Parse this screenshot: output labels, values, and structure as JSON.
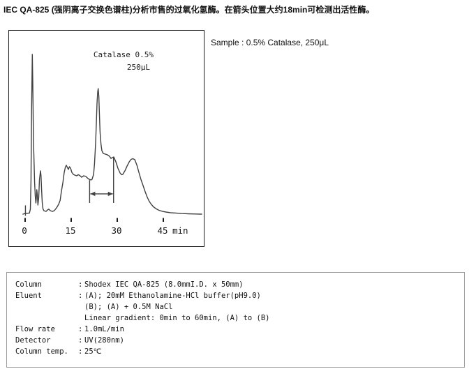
{
  "title": "IEC QA-825 (强阴离子交换色谱柱)分析市售的过氧化氢酶。在箭头位置大约18min可检测出活性酶。",
  "sample_text": "Sample : 0.5% Catalase, 250μL",
  "chart_data": {
    "type": "line",
    "title": "Catalase 0.5% 250μL chromatogram",
    "annotation_line1": "Catalase 0.5%",
    "annotation_line2": "250μL",
    "x_ticks": [
      0,
      15,
      30,
      45
    ],
    "x_unit": "min",
    "x_range": [
      -1,
      58
    ],
    "y_range": [
      0,
      105
    ],
    "grid": false,
    "legend": "none",
    "trace_units": "minutes vs relative UV(280nm) response (0-100 arb.)",
    "trace": [
      [
        -0.7,
        0
      ],
      [
        0,
        0.4
      ],
      [
        1.4,
        0.7
      ],
      [
        1.7,
        3.1
      ],
      [
        1.9,
        20.5
      ],
      [
        2.1,
        64
      ],
      [
        2.34,
        100
      ],
      [
        2.5,
        82
      ],
      [
        2.7,
        47
      ],
      [
        3.1,
        19.7
      ],
      [
        3.3,
        11.4
      ],
      [
        3.5,
        7
      ],
      [
        3.64,
        9.6
      ],
      [
        3.8,
        15.3
      ],
      [
        4.0,
        11.8
      ],
      [
        4.16,
        5.7
      ],
      [
        4.43,
        10.5
      ],
      [
        4.66,
        21.4
      ],
      [
        5.0,
        27.1
      ],
      [
        5.18,
        24
      ],
      [
        5.34,
        16.2
      ],
      [
        5.57,
        7.4
      ],
      [
        5.8,
        3.5
      ],
      [
        6.1,
        2.2
      ],
      [
        6.8,
        1.7
      ],
      [
        7.3,
        2.6
      ],
      [
        7.7,
        3.1
      ],
      [
        8.2,
        2.2
      ],
      [
        8.9,
        1.7
      ],
      [
        9.5,
        2.2
      ],
      [
        10.2,
        3.9
      ],
      [
        10.9,
        6.1
      ],
      [
        11.4,
        8.7
      ],
      [
        11.8,
        14
      ],
      [
        12.3,
        19.7
      ],
      [
        12.7,
        25.8
      ],
      [
        13.1,
        29.3
      ],
      [
        13.4,
        30.6
      ],
      [
        13.75,
        29.3
      ],
      [
        14.1,
        28
      ],
      [
        14.43,
        29.7
      ],
      [
        14.8,
        28.8
      ],
      [
        15.2,
        26.2
      ],
      [
        15.7,
        24.9
      ],
      [
        16.1,
        24.5
      ],
      [
        16.8,
        24
      ],
      [
        17.3,
        24.7
      ],
      [
        17.9,
        24
      ],
      [
        18.4,
        23.1
      ],
      [
        19.1,
        24
      ],
      [
        19.8,
        23.6
      ],
      [
        20.45,
        22.3
      ],
      [
        20.9,
        21.8
      ],
      [
        21.4,
        21.4
      ],
      [
        21.8,
        21.8
      ],
      [
        22.3,
        24.9
      ],
      [
        22.6,
        31.4
      ],
      [
        22.95,
        44.5
      ],
      [
        23.2,
        57.6
      ],
      [
        23.4,
        69.4
      ],
      [
        23.64,
        76.4
      ],
      [
        23.8,
        78.6
      ],
      [
        24.0,
        73.8
      ],
      [
        24.2,
        62
      ],
      [
        24.4,
        51.1
      ],
      [
        24.7,
        43.7
      ],
      [
        25.0,
        39.7
      ],
      [
        25.45,
        38
      ],
      [
        26.1,
        37.6
      ],
      [
        26.8,
        37.1
      ],
      [
        27.5,
        36.2
      ],
      [
        27.95,
        34.9
      ],
      [
        28.4,
        35.4
      ],
      [
        28.86,
        35.8
      ],
      [
        29.55,
        32.8
      ],
      [
        30.2,
        28.8
      ],
      [
        30.9,
        25.8
      ],
      [
        31.4,
        24.7
      ],
      [
        31.8,
        24.9
      ],
      [
        32.5,
        27.1
      ],
      [
        33.2,
        30.1
      ],
      [
        33.9,
        32.8
      ],
      [
        34.5,
        34.3
      ],
      [
        35.1,
        34.7
      ],
      [
        35.7,
        34.1
      ],
      [
        36.4,
        30.6
      ],
      [
        37.05,
        26.2
      ],
      [
        37.7,
        21.8
      ],
      [
        38.4,
        17.9
      ],
      [
        39.1,
        14
      ],
      [
        39.8,
        10.5
      ],
      [
        40.45,
        7.9
      ],
      [
        41.1,
        6.1
      ],
      [
        41.8,
        4.6
      ],
      [
        42.7,
        3.3
      ],
      [
        43.6,
        2.4
      ],
      [
        44.8,
        1.7
      ],
      [
        45.9,
        1.3
      ],
      [
        47.3,
        0.9
      ],
      [
        49.1,
        0.7
      ],
      [
        50.9,
        0.4
      ],
      [
        53.2,
        0.2
      ],
      [
        55.5,
        0.1
      ],
      [
        57.5,
        0
      ]
    ],
    "injection_mark": {
      "t": 0.1,
      "v_from": -1.0,
      "v_to": 5.5
    },
    "active_enzyme_marker": {
      "t_start": 21.0,
      "t_end": 28.8,
      "arrow_v": 12.7,
      "bar_bottom_v": 7.0,
      "left_bar_top_v": 21.3,
      "right_bar_top_v": 35.5
    }
  },
  "conditions": {
    "rows": [
      {
        "label": "Column",
        "sep": ":",
        "value": "Shodex IEC QA-825 (8.0mmI.D. x 50mm)"
      },
      {
        "label": "Eluent",
        "sep": ":",
        "value": "(A); 20mM Ethanolamine-HCl buffer(pH9.0)"
      },
      {
        "label": "",
        "sep": "",
        "value": "(B); (A) + 0.5M NaCl"
      },
      {
        "label": "",
        "sep": "",
        "value": "Linear gradient: 0min to 60min, (A) to (B)"
      },
      {
        "label": "Flow rate",
        "sep": ":",
        "value": "1.0mL/min"
      },
      {
        "label": "Detector",
        "sep": ":",
        "value": "UV(280nm)"
      },
      {
        "label": "Column temp.",
        "sep": ":",
        "value": "25℃"
      }
    ]
  },
  "colors": {
    "trace": "#404040",
    "axis": "#1a1a1a",
    "chart_border": "#1c1c1c",
    "spec_border": "#9c9c9c",
    "text": "#111111"
  }
}
